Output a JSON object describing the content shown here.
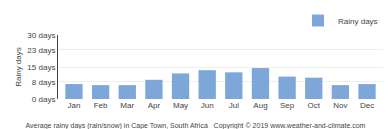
{
  "chart_data": {
    "type": "bar",
    "title": "Average rainy days (rain/snow) in Cape Town, South Africa   Copyright © 2019 www.weather-and-climate.com",
    "ylabel": "Rainy days",
    "categories": [
      "Jan",
      "Feb",
      "Mar",
      "Apr",
      "May",
      "Jun",
      "Jul",
      "Aug",
      "Sep",
      "Oct",
      "Nov",
      "Dec"
    ],
    "series": [
      {
        "name": "Rainy days",
        "color": "#7da7d9",
        "values": [
          7,
          6.5,
          6.5,
          9,
          12,
          13.5,
          12.5,
          14.5,
          10.5,
          10,
          6.5,
          7
        ]
      }
    ],
    "ylim": [
      0,
      30
    ],
    "yticks": [
      {
        "value": 0,
        "label": "0 days"
      },
      {
        "value": 8,
        "label": "8 days"
      },
      {
        "value": 15,
        "label": "15 days"
      },
      {
        "value": 23,
        "label": "23 days"
      },
      {
        "value": 30,
        "label": "30 days"
      }
    ],
    "grid": true,
    "legend": "upper right"
  }
}
